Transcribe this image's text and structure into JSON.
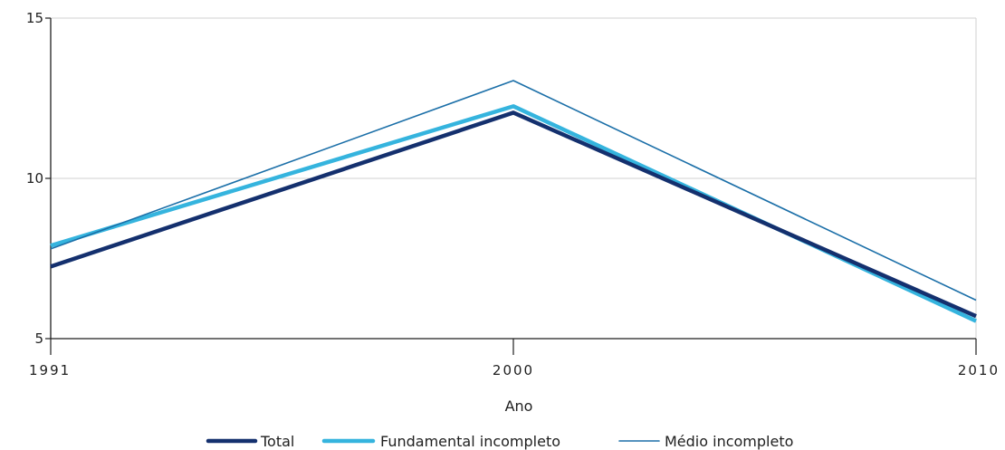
{
  "chart_data": {
    "type": "line",
    "x": [
      "1991",
      "2000",
      "2010"
    ],
    "xlabel": "Ano",
    "ylabel": "",
    "ylim": [
      5,
      15
    ],
    "yticks": [
      5,
      10,
      15
    ],
    "grid": "horizontal",
    "legend_position": "bottom",
    "series": [
      {
        "name": "Total",
        "values": [
          7.25,
          12.05,
          5.7
        ],
        "color": "#14306e"
      },
      {
        "name": "Fundamental incompleto",
        "values": [
          7.9,
          12.25,
          5.55
        ],
        "color": "#35b4de"
      },
      {
        "name": "Médio incompleto",
        "values": [
          7.8,
          13.05,
          6.2
        ],
        "color": "#1b6fa8"
      }
    ]
  }
}
